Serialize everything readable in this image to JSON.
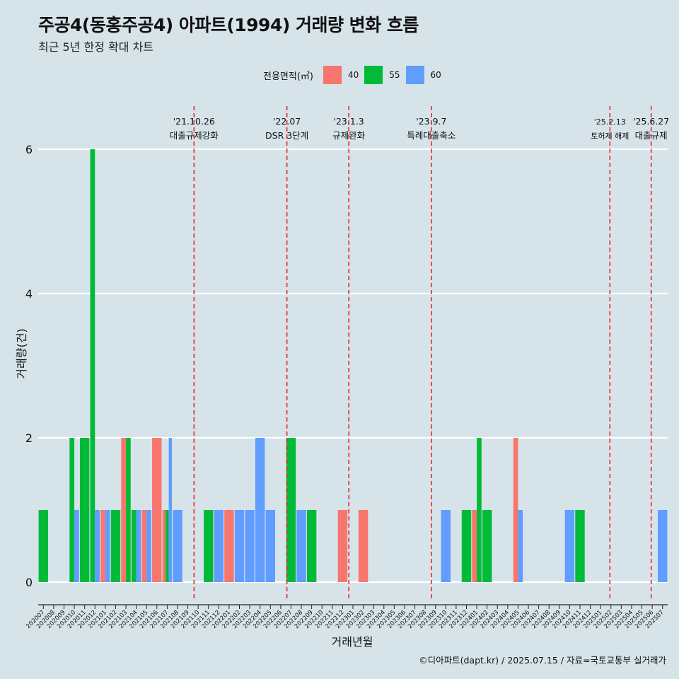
{
  "title": "주공4(동홍주공4) 아파트(1994) 거래량 변화 흐름",
  "subtitle": "최근 5년 한정 확대 차트",
  "caption": "©디아파트(dapt.kr) / 2025.07.15 / 자료=국토교통부 실거래가",
  "legend": {
    "title": "전용면적(㎡)",
    "items": [
      {
        "label": "40",
        "color": "#f8766d"
      },
      {
        "label": "55",
        "color": "#00ba38"
      },
      {
        "label": "60",
        "color": "#619cff"
      }
    ]
  },
  "chart_data": {
    "type": "bar",
    "xlabel": "거래년월",
    "ylabel": "거래량(건)",
    "ylim": [
      0,
      6.6
    ],
    "yticks": [
      0,
      2,
      4,
      6
    ],
    "grid": true,
    "legend_position": "top",
    "categories": [
      "202007",
      "202008",
      "202009",
      "202010",
      "202011",
      "202012",
      "202101",
      "202102",
      "202103",
      "202104",
      "202105",
      "202106",
      "202107",
      "202108",
      "202109",
      "202110",
      "202111",
      "202112",
      "202201",
      "202202",
      "202203",
      "202204",
      "202205",
      "202206",
      "202207",
      "202208",
      "202209",
      "202210",
      "202211",
      "202212",
      "202301",
      "202302",
      "202303",
      "202304",
      "202305",
      "202306",
      "202307",
      "202308",
      "202309",
      "202310",
      "202311",
      "202312",
      "202401",
      "202402",
      "202403",
      "202404",
      "202405",
      "202406",
      "202407",
      "202408",
      "202409",
      "202410",
      "202411",
      "202412",
      "202501",
      "202502",
      "202503",
      "202504",
      "202505",
      "202506",
      "202507"
    ],
    "series": [
      {
        "name": "40",
        "color": "#f8766d",
        "values": [
          0,
          0,
          0,
          0,
          0,
          0,
          1,
          0,
          2,
          0,
          1,
          2,
          1,
          0,
          0,
          0,
          0,
          0,
          1,
          0,
          0,
          0,
          0,
          0,
          0,
          0,
          0,
          0,
          0,
          1,
          0,
          1,
          0,
          0,
          0,
          0,
          0,
          0,
          0,
          0,
          0,
          0,
          1,
          0,
          0,
          0,
          2,
          0,
          0,
          0,
          0,
          0,
          0,
          0,
          0,
          0,
          0,
          0,
          0,
          0,
          0
        ]
      },
      {
        "name": "55",
        "color": "#00ba38",
        "values": [
          1,
          0,
          0,
          2,
          2,
          6,
          0,
          1,
          2,
          1,
          0,
          0,
          1,
          0,
          0,
          0,
          1,
          0,
          0,
          0,
          0,
          0,
          0,
          0,
          2,
          0,
          1,
          0,
          0,
          0,
          0,
          0,
          0,
          0,
          0,
          0,
          0,
          0,
          0,
          0,
          0,
          1,
          2,
          1,
          0,
          0,
          0,
          0,
          0,
          0,
          0,
          0,
          1,
          0,
          0,
          0,
          0,
          0,
          0,
          0,
          0
        ]
      },
      {
        "name": "60",
        "color": "#619cff",
        "values": [
          0,
          0,
          0,
          1,
          0,
          1,
          1,
          0,
          0,
          1,
          1,
          0,
          2,
          1,
          0,
          0,
          0,
          1,
          0,
          1,
          1,
          2,
          1,
          0,
          0,
          1,
          0,
          0,
          0,
          0,
          0,
          0,
          0,
          0,
          0,
          0,
          0,
          0,
          0,
          1,
          0,
          0,
          0,
          0,
          0,
          0,
          1,
          0,
          0,
          0,
          0,
          1,
          0,
          0,
          0,
          0,
          0,
          0,
          0,
          0,
          1
        ]
      }
    ],
    "annotations": [
      {
        "x": 15.1,
        "date": "'21.10.26",
        "label": "대출규제강화"
      },
      {
        "x": 24.1,
        "date": "'22.07",
        "label": "DSR 3단계"
      },
      {
        "x": 30.1,
        "date": "'23.1.3",
        "label": "규제완화"
      },
      {
        "x": 38.1,
        "date": "'23.9.7",
        "label": "특례대출축소"
      },
      {
        "x": 55.4,
        "date": "'25.2.13",
        "label": "토허제 해제"
      },
      {
        "x": 59.4,
        "date": "'25.6.27",
        "label": "대출규제"
      }
    ]
  }
}
